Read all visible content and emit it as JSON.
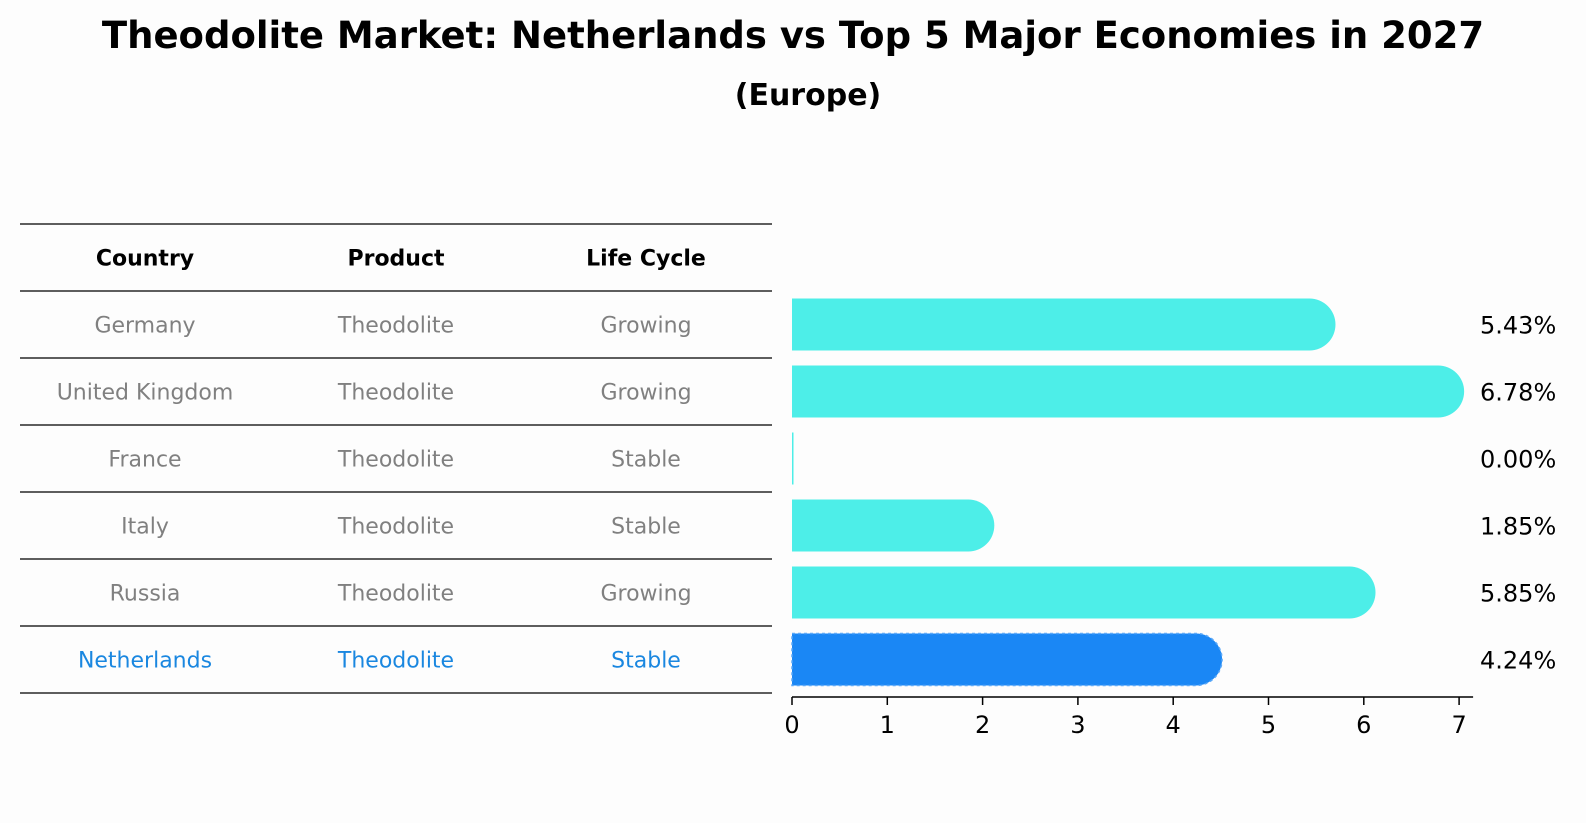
{
  "title": "Theodolite Market: Netherlands vs Top 5 Major Economies in 2027",
  "subtitle": "(Europe)",
  "table": {
    "headers": [
      "Country",
      "Product",
      "Life Cycle"
    ],
    "rows": [
      [
        "Germany",
        "Theodolite",
        "Growing"
      ],
      [
        "United Kingdom",
        "Theodolite",
        "Growing"
      ],
      [
        "France",
        "Theodolite",
        "Stable"
      ],
      [
        "Italy",
        "Theodolite",
        "Stable"
      ],
      [
        "Russia",
        "Theodolite",
        "Growing"
      ],
      [
        "Netherlands",
        "Theodolite",
        "Stable"
      ]
    ],
    "highlight_row": 5
  },
  "colors": {
    "bar": "#4deee8",
    "highlight_bar": "#1a87f5",
    "highlight_text": "#1a87e0",
    "row_text": "#808080",
    "rule": "#000000"
  },
  "chart_data": {
    "type": "bar",
    "orientation": "horizontal",
    "categories": [
      "Germany",
      "United Kingdom",
      "France",
      "Italy",
      "Russia",
      "Netherlands"
    ],
    "values": [
      5.43,
      6.78,
      0.0,
      1.85,
      5.85,
      4.24
    ],
    "value_labels": [
      "5.43%",
      "6.78%",
      "0.00%",
      "1.85%",
      "5.85%",
      "4.24%"
    ],
    "highlight": "Netherlands",
    "xlim": [
      0,
      7
    ],
    "xticks": [
      0,
      1,
      2,
      3,
      4,
      5,
      6,
      7
    ],
    "grid": false,
    "xlabel": "",
    "ylabel": ""
  }
}
